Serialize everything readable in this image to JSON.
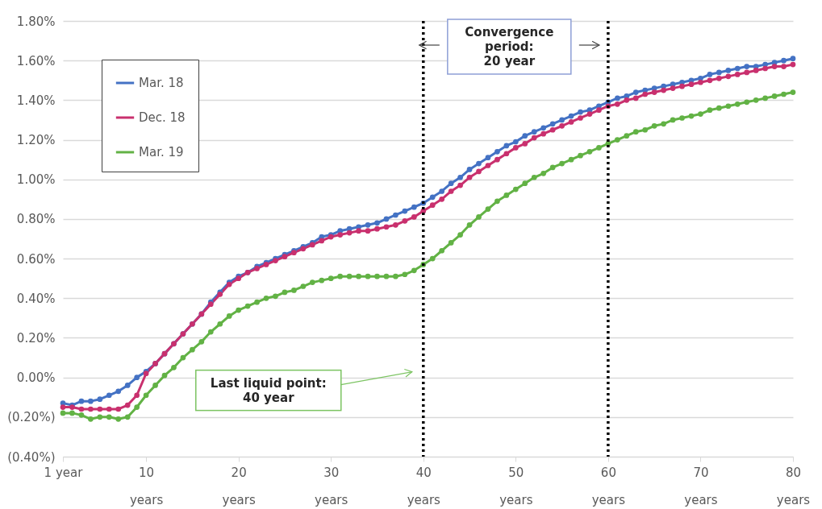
{
  "chart_data": {
    "type": "line",
    "x": [
      1,
      2,
      3,
      4,
      5,
      6,
      7,
      8,
      9,
      10,
      11,
      12,
      13,
      14,
      15,
      16,
      17,
      18,
      19,
      20,
      21,
      22,
      23,
      24,
      25,
      26,
      27,
      28,
      29,
      30,
      31,
      32,
      33,
      34,
      35,
      36,
      37,
      38,
      39,
      40,
      41,
      42,
      43,
      44,
      45,
      46,
      47,
      48,
      49,
      50,
      51,
      52,
      53,
      54,
      55,
      56,
      57,
      58,
      59,
      60,
      61,
      62,
      63,
      64,
      65,
      66,
      67,
      68,
      69,
      70,
      71,
      72,
      73,
      74,
      75,
      76,
      77,
      78,
      79,
      80
    ],
    "series": [
      {
        "name": "Mar. 18",
        "color": "#4472c4",
        "values": [
          -0.13,
          -0.14,
          -0.12,
          -0.12,
          -0.11,
          -0.09,
          -0.07,
          -0.04,
          0.0,
          0.03,
          0.07,
          0.12,
          0.17,
          0.22,
          0.27,
          0.32,
          0.38,
          0.43,
          0.48,
          0.51,
          0.53,
          0.56,
          0.58,
          0.6,
          0.62,
          0.64,
          0.66,
          0.68,
          0.71,
          0.72,
          0.74,
          0.75,
          0.76,
          0.77,
          0.78,
          0.8,
          0.82,
          0.84,
          0.86,
          0.88,
          0.91,
          0.94,
          0.98,
          1.01,
          1.05,
          1.08,
          1.11,
          1.14,
          1.17,
          1.19,
          1.22,
          1.24,
          1.26,
          1.28,
          1.3,
          1.32,
          1.34,
          1.35,
          1.37,
          1.39,
          1.41,
          1.42,
          1.44,
          1.45,
          1.46,
          1.47,
          1.48,
          1.49,
          1.5,
          1.51,
          1.53,
          1.54,
          1.55,
          1.56,
          1.57,
          1.57,
          1.58,
          1.59,
          1.6,
          1.61
        ]
      },
      {
        "name": "Dec. 18",
        "color": "#c9306e",
        "values": [
          -0.15,
          -0.15,
          -0.16,
          -0.16,
          -0.16,
          -0.16,
          -0.16,
          -0.14,
          -0.09,
          0.02,
          0.07,
          0.12,
          0.17,
          0.22,
          0.27,
          0.32,
          0.37,
          0.42,
          0.47,
          0.5,
          0.53,
          0.55,
          0.57,
          0.59,
          0.61,
          0.63,
          0.65,
          0.67,
          0.69,
          0.71,
          0.72,
          0.73,
          0.74,
          0.74,
          0.75,
          0.76,
          0.77,
          0.79,
          0.81,
          0.84,
          0.87,
          0.9,
          0.94,
          0.97,
          1.01,
          1.04,
          1.07,
          1.1,
          1.13,
          1.16,
          1.18,
          1.21,
          1.23,
          1.25,
          1.27,
          1.29,
          1.31,
          1.33,
          1.35,
          1.37,
          1.38,
          1.4,
          1.41,
          1.43,
          1.44,
          1.45,
          1.46,
          1.47,
          1.48,
          1.49,
          1.5,
          1.51,
          1.52,
          1.53,
          1.54,
          1.55,
          1.56,
          1.57,
          1.57,
          1.58
        ]
      },
      {
        "name": "Mar. 19",
        "color": "#62b245",
        "values": [
          -0.18,
          -0.18,
          -0.19,
          -0.21,
          -0.2,
          -0.2,
          -0.21,
          -0.2,
          -0.15,
          -0.09,
          -0.04,
          0.01,
          0.05,
          0.1,
          0.14,
          0.18,
          0.23,
          0.27,
          0.31,
          0.34,
          0.36,
          0.38,
          0.4,
          0.41,
          0.43,
          0.44,
          0.46,
          0.48,
          0.49,
          0.5,
          0.51,
          0.51,
          0.51,
          0.51,
          0.51,
          0.51,
          0.51,
          0.52,
          0.54,
          0.57,
          0.6,
          0.64,
          0.68,
          0.72,
          0.77,
          0.81,
          0.85,
          0.89,
          0.92,
          0.95,
          0.98,
          1.01,
          1.03,
          1.06,
          1.08,
          1.1,
          1.12,
          1.14,
          1.16,
          1.18,
          1.2,
          1.22,
          1.24,
          1.25,
          1.27,
          1.28,
          1.3,
          1.31,
          1.32,
          1.33,
          1.35,
          1.36,
          1.37,
          1.38,
          1.39,
          1.4,
          1.41,
          1.42,
          1.43,
          1.44
        ]
      }
    ],
    "xlim": [
      1,
      80
    ],
    "xticks": [
      {
        "value": 1,
        "label": "1 year"
      },
      {
        "value": 10,
        "label": "10\nyears"
      },
      {
        "value": 20,
        "label": "20\nyears"
      },
      {
        "value": 30,
        "label": "30\nyears"
      },
      {
        "value": 40,
        "label": "40\nyears"
      },
      {
        "value": 50,
        "label": "50\nyears"
      },
      {
        "value": 60,
        "label": "60\nyears"
      },
      {
        "value": 70,
        "label": "70\nyears"
      },
      {
        "value": 80,
        "label": "80\nyears"
      }
    ],
    "ylim": [
      -0.4,
      1.8
    ],
    "yticks": [
      {
        "value": -0.4,
        "label": "(0.40%)"
      },
      {
        "value": -0.2,
        "label": "(0.20%)"
      },
      {
        "value": 0,
        "label": "0.00%"
      },
      {
        "value": 0.2,
        "label": "0.20%"
      },
      {
        "value": 0.4,
        "label": "0.40%"
      },
      {
        "value": 0.6,
        "label": "0.60%"
      },
      {
        "value": 0.8,
        "label": "0.80%"
      },
      {
        "value": 1.0,
        "label": "1.00%"
      },
      {
        "value": 1.2,
        "label": "1.20%"
      },
      {
        "value": 1.4,
        "label": "1.40%"
      },
      {
        "value": 1.6,
        "label": "1.60%"
      },
      {
        "value": 1.8,
        "label": "1.80%"
      }
    ],
    "grid": "y",
    "legend": "top left",
    "marker": "circle",
    "ref_lines": [
      {
        "axis": "x",
        "value": 40,
        "color": "#000000",
        "line_style": "dotted"
      },
      {
        "axis": "x",
        "value": 60,
        "color": "#000000",
        "line_style": "dotted"
      }
    ],
    "annotations": [
      "Convergence\nperiod:\n20 year",
      "Last liquid point:\n40 year"
    ]
  }
}
